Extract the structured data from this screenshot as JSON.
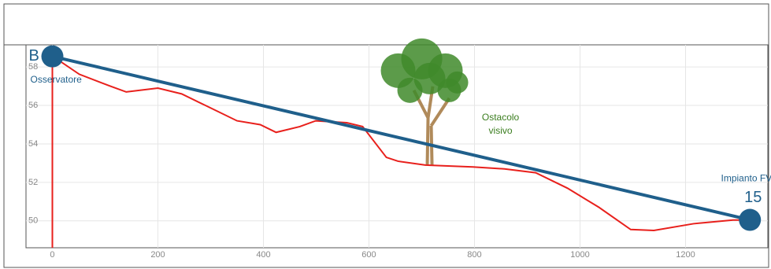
{
  "chart_data": {
    "type": "line",
    "x": [
      0,
      51,
      110,
      140,
      200,
      245,
      290,
      350,
      394,
      424,
      469,
      499,
      558,
      588,
      633,
      655,
      707,
      797,
      857,
      916,
      976,
      1036,
      1096,
      1140,
      1215,
      1290,
      1322
    ],
    "series": [
      {
        "color": "#e8201c",
        "values": [
          58.57,
          57.62,
          57.0,
          56.7,
          56.9,
          56.6,
          56.0,
          55.2,
          55.0,
          54.6,
          54.9,
          55.2,
          55.1,
          54.9,
          53.3,
          53.1,
          52.9,
          52.8,
          52.7,
          52.5,
          51.7,
          50.7,
          49.55,
          49.5,
          49.85,
          50.04,
          50.04
        ]
      }
    ],
    "sight_line": {
      "x": [
        0,
        1322
      ],
      "values": [
        58.55,
        50.05
      ],
      "color": "#1f5f8b"
    },
    "points": [
      {
        "label": "B",
        "caption": "Osservatore",
        "x": 0,
        "y": 58.55
      },
      {
        "label": "15",
        "caption": "Impianto FV",
        "x": 1322,
        "y": 50.05
      }
    ],
    "obstacle": {
      "lines": [
        "Ostacolo",
        "visivo"
      ],
      "x": 715
    },
    "xlim": [
      -50,
      1356
    ],
    "ylim": [
      48.6,
      59.15
    ],
    "xticks": [
      0,
      200,
      400,
      600,
      800,
      1000,
      1200
    ],
    "yticks": [
      50,
      52,
      54,
      56,
      58
    ],
    "grid": true
  }
}
